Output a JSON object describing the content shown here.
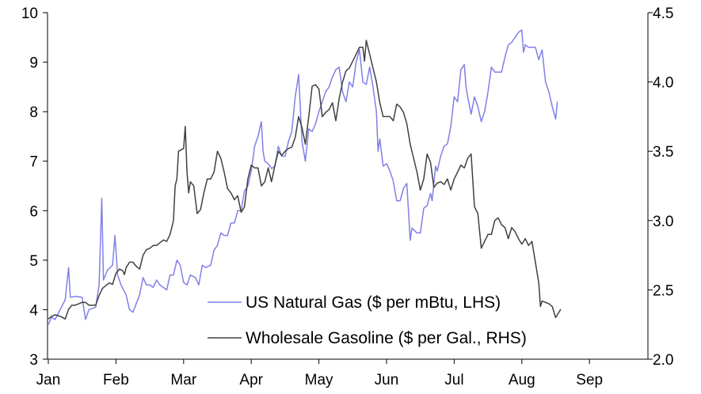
{
  "chart_data": {
    "type": "line",
    "title": "",
    "xlabel": "",
    "ylabel_left": "",
    "ylabel_right": "",
    "x_ticks": [
      "Jan",
      "Feb",
      "Mar",
      "Apr",
      "May",
      "Jun",
      "Jul",
      "Aug",
      "Sep"
    ],
    "left_axis": {
      "range": [
        3,
        10
      ],
      "ticks": [
        "3",
        "4",
        "5",
        "6",
        "7",
        "8",
        "9",
        "10"
      ]
    },
    "right_axis": {
      "range": [
        2.0,
        4.5
      ],
      "ticks": [
        "2.0",
        "2.5",
        "3.0",
        "3.5",
        "4.0",
        "4.5"
      ]
    },
    "legend_position": "bottom-center",
    "grid": false,
    "series": [
      {
        "name": "US Natural Gas ($ per mBtu, LHS)",
        "axis": "left",
        "color": "#8080e8",
        "points": [
          [
            0.0,
            3.7
          ],
          [
            0.1,
            3.85
          ],
          [
            0.2,
            3.8
          ],
          [
            0.35,
            4.0
          ],
          [
            0.5,
            4.2
          ],
          [
            0.6,
            4.85
          ],
          [
            0.65,
            4.25
          ],
          [
            0.8,
            4.27
          ],
          [
            1.0,
            4.25
          ],
          [
            1.1,
            3.8
          ],
          [
            1.2,
            4.0
          ],
          [
            1.4,
            4.05
          ],
          [
            1.5,
            4.5
          ],
          [
            1.58,
            6.25
          ],
          [
            1.63,
            4.6
          ],
          [
            1.75,
            4.8
          ],
          [
            1.9,
            4.9
          ],
          [
            1.97,
            5.5
          ],
          [
            2.05,
            4.7
          ],
          [
            2.15,
            4.5
          ],
          [
            2.3,
            4.3
          ],
          [
            2.4,
            4.0
          ],
          [
            2.5,
            3.95
          ],
          [
            2.7,
            4.3
          ],
          [
            2.8,
            4.65
          ],
          [
            2.9,
            4.5
          ],
          [
            3.0,
            4.5
          ],
          [
            3.1,
            4.45
          ],
          [
            3.2,
            4.6
          ],
          [
            3.3,
            4.5
          ],
          [
            3.5,
            4.4
          ],
          [
            3.6,
            4.7
          ],
          [
            3.7,
            4.7
          ],
          [
            3.8,
            5.0
          ],
          [
            3.9,
            4.9
          ],
          [
            4.0,
            4.55
          ],
          [
            4.1,
            4.5
          ],
          [
            4.2,
            4.7
          ],
          [
            4.35,
            4.65
          ],
          [
            4.45,
            4.5
          ],
          [
            4.55,
            4.9
          ],
          [
            4.65,
            4.85
          ],
          [
            4.8,
            4.9
          ],
          [
            4.9,
            5.2
          ],
          [
            5.0,
            5.3
          ],
          [
            5.1,
            5.55
          ],
          [
            5.2,
            5.5
          ],
          [
            5.3,
            5.5
          ],
          [
            5.4,
            5.75
          ],
          [
            5.5,
            5.75
          ],
          [
            5.6,
            6.0
          ],
          [
            5.7,
            6.0
          ],
          [
            5.8,
            6.4
          ],
          [
            5.9,
            6.5
          ],
          [
            6.0,
            6.8
          ],
          [
            6.1,
            7.3
          ],
          [
            6.2,
            7.5
          ],
          [
            6.3,
            7.8
          ],
          [
            6.35,
            7.2
          ],
          [
            6.4,
            7.0
          ],
          [
            6.5,
            6.95
          ],
          [
            6.6,
            6.85
          ],
          [
            6.7,
            6.9
          ],
          [
            6.8,
            7.3
          ],
          [
            6.9,
            7.1
          ],
          [
            7.0,
            7.1
          ],
          [
            7.1,
            7.4
          ],
          [
            7.2,
            7.6
          ],
          [
            7.3,
            8.3
          ],
          [
            7.4,
            8.75
          ],
          [
            7.5,
            7.4
          ],
          [
            7.6,
            7.0
          ],
          [
            7.7,
            7.65
          ],
          [
            7.8,
            7.6
          ],
          [
            7.9,
            7.75
          ],
          [
            8.0,
            8.0
          ],
          [
            8.1,
            8.2
          ],
          [
            8.2,
            8.4
          ],
          [
            8.3,
            8.5
          ],
          [
            8.4,
            8.7
          ],
          [
            8.5,
            8.85
          ],
          [
            8.6,
            8.9
          ],
          [
            8.7,
            8.4
          ],
          [
            8.8,
            8.2
          ],
          [
            8.9,
            8.6
          ],
          [
            9.0,
            8.5
          ],
          [
            9.1,
            9.0
          ],
          [
            9.2,
            9.25
          ],
          [
            9.3,
            8.6
          ],
          [
            9.4,
            8.55
          ],
          [
            9.5,
            8.9
          ],
          [
            9.6,
            8.5
          ],
          [
            9.7,
            8.0
          ],
          [
            9.75,
            7.2
          ],
          [
            9.8,
            7.45
          ],
          [
            9.9,
            6.9
          ],
          [
            10.0,
            6.95
          ],
          [
            10.1,
            6.8
          ],
          [
            10.2,
            6.6
          ],
          [
            10.3,
            6.2
          ],
          [
            10.4,
            6.2
          ],
          [
            10.5,
            6.45
          ],
          [
            10.6,
            6.55
          ],
          [
            10.7,
            5.4
          ],
          [
            10.75,
            5.65
          ],
          [
            10.9,
            5.55
          ],
          [
            11.0,
            5.55
          ],
          [
            11.1,
            6.05
          ],
          [
            11.2,
            6.1
          ],
          [
            11.3,
            6.35
          ],
          [
            11.35,
            6.2
          ],
          [
            11.45,
            6.9
          ],
          [
            11.5,
            6.8
          ],
          [
            11.6,
            7.1
          ],
          [
            11.7,
            7.3
          ],
          [
            11.8,
            7.35
          ],
          [
            11.9,
            7.7
          ],
          [
            12.0,
            8.3
          ],
          [
            12.1,
            8.2
          ],
          [
            12.2,
            8.85
          ],
          [
            12.3,
            8.95
          ],
          [
            12.35,
            8.5
          ],
          [
            12.4,
            8.3
          ],
          [
            12.5,
            7.95
          ],
          [
            12.6,
            8.3
          ],
          [
            12.7,
            8.1
          ],
          [
            12.8,
            7.8
          ],
          [
            12.9,
            8.0
          ],
          [
            13.0,
            8.4
          ],
          [
            13.1,
            8.9
          ],
          [
            13.2,
            8.8
          ],
          [
            13.3,
            8.8
          ],
          [
            13.4,
            8.8
          ],
          [
            13.5,
            9.1
          ],
          [
            13.6,
            9.35
          ],
          [
            13.7,
            9.4
          ],
          [
            13.8,
            9.5
          ],
          [
            13.9,
            9.6
          ],
          [
            14.0,
            9.65
          ],
          [
            14.05,
            9.2
          ],
          [
            14.1,
            9.35
          ],
          [
            14.2,
            9.3
          ],
          [
            14.3,
            9.3
          ],
          [
            14.4,
            9.3
          ],
          [
            14.5,
            9.05
          ],
          [
            14.6,
            9.25
          ],
          [
            14.7,
            8.6
          ],
          [
            14.8,
            8.4
          ],
          [
            14.9,
            8.1
          ],
          [
            15.0,
            7.85
          ],
          [
            15.05,
            8.2
          ]
        ]
      },
      {
        "name": "Wholesale Gasoline ($ per Gal., RHS)",
        "axis": "right",
        "color": "#404040",
        "points": [
          [
            0.0,
            2.29
          ],
          [
            0.1,
            2.31
          ],
          [
            0.2,
            2.32
          ],
          [
            0.35,
            2.31
          ],
          [
            0.5,
            2.29
          ],
          [
            0.6,
            2.36
          ],
          [
            0.7,
            2.39
          ],
          [
            0.8,
            2.39
          ],
          [
            1.0,
            2.41
          ],
          [
            1.1,
            2.41
          ],
          [
            1.2,
            2.39
          ],
          [
            1.4,
            2.39
          ],
          [
            1.5,
            2.46
          ],
          [
            1.6,
            2.51
          ],
          [
            1.7,
            2.53
          ],
          [
            1.8,
            2.55
          ],
          [
            1.9,
            2.54
          ],
          [
            2.0,
            2.62
          ],
          [
            2.1,
            2.65
          ],
          [
            2.2,
            2.64
          ],
          [
            2.25,
            2.61
          ],
          [
            2.3,
            2.66
          ],
          [
            2.4,
            2.7
          ],
          [
            2.5,
            2.7
          ],
          [
            2.6,
            2.67
          ],
          [
            2.7,
            2.65
          ],
          [
            2.8,
            2.75
          ],
          [
            2.9,
            2.79
          ],
          [
            3.0,
            2.8
          ],
          [
            3.1,
            2.82
          ],
          [
            3.2,
            2.82
          ],
          [
            3.3,
            2.84
          ],
          [
            3.4,
            2.86
          ],
          [
            3.5,
            2.85
          ],
          [
            3.6,
            2.9
          ],
          [
            3.7,
            3.0
          ],
          [
            3.75,
            3.25
          ],
          [
            3.8,
            3.3
          ],
          [
            3.85,
            3.5
          ],
          [
            4.0,
            3.52
          ],
          [
            4.05,
            3.68
          ],
          [
            4.1,
            3.35
          ],
          [
            4.15,
            3.2
          ],
          [
            4.2,
            3.28
          ],
          [
            4.3,
            3.25
          ],
          [
            4.4,
            3.05
          ],
          [
            4.5,
            3.08
          ],
          [
            4.6,
            3.2
          ],
          [
            4.7,
            3.3
          ],
          [
            4.8,
            3.3
          ],
          [
            4.9,
            3.35
          ],
          [
            5.0,
            3.5
          ],
          [
            5.1,
            3.45
          ],
          [
            5.2,
            3.35
          ],
          [
            5.3,
            3.23
          ],
          [
            5.4,
            3.2
          ],
          [
            5.5,
            3.15
          ],
          [
            5.6,
            3.18
          ],
          [
            5.7,
            3.06
          ],
          [
            5.8,
            3.1
          ],
          [
            5.9,
            3.3
          ],
          [
            6.0,
            3.4
          ],
          [
            6.1,
            3.38
          ],
          [
            6.2,
            3.38
          ],
          [
            6.3,
            3.25
          ],
          [
            6.4,
            3.28
          ],
          [
            6.5,
            3.38
          ],
          [
            6.6,
            3.28
          ],
          [
            6.7,
            3.4
          ],
          [
            6.8,
            3.5
          ],
          [
            6.9,
            3.47
          ],
          [
            7.0,
            3.5
          ],
          [
            7.1,
            3.52
          ],
          [
            7.2,
            3.53
          ],
          [
            7.3,
            3.6
          ],
          [
            7.4,
            3.75
          ],
          [
            7.5,
            3.67
          ],
          [
            7.6,
            3.55
          ],
          [
            7.7,
            3.75
          ],
          [
            7.8,
            3.97
          ],
          [
            7.9,
            3.98
          ],
          [
            8.0,
            3.95
          ],
          [
            8.1,
            3.75
          ],
          [
            8.2,
            3.78
          ],
          [
            8.3,
            3.8
          ],
          [
            8.4,
            3.85
          ],
          [
            8.5,
            3.72
          ],
          [
            8.6,
            3.88
          ],
          [
            8.7,
            4.0
          ],
          [
            8.8,
            4.08
          ],
          [
            8.9,
            4.1
          ],
          [
            9.0,
            4.15
          ],
          [
            9.1,
            4.2
          ],
          [
            9.2,
            4.25
          ],
          [
            9.3,
            4.25
          ],
          [
            9.35,
            4.15
          ],
          [
            9.4,
            4.3
          ],
          [
            9.5,
            4.2
          ],
          [
            9.6,
            4.1
          ],
          [
            9.7,
            4.0
          ],
          [
            9.8,
            3.85
          ],
          [
            9.9,
            3.75
          ],
          [
            10.0,
            3.75
          ],
          [
            10.1,
            3.75
          ],
          [
            10.2,
            3.72
          ],
          [
            10.3,
            3.84
          ],
          [
            10.4,
            3.82
          ],
          [
            10.5,
            3.78
          ],
          [
            10.6,
            3.7
          ],
          [
            10.7,
            3.55
          ],
          [
            10.8,
            3.45
          ],
          [
            10.9,
            3.35
          ],
          [
            11.0,
            3.22
          ],
          [
            11.1,
            3.3
          ],
          [
            11.2,
            3.48
          ],
          [
            11.3,
            3.42
          ],
          [
            11.4,
            3.24
          ],
          [
            11.5,
            3.27
          ],
          [
            11.6,
            3.28
          ],
          [
            11.7,
            3.26
          ],
          [
            11.8,
            3.3
          ],
          [
            11.9,
            3.22
          ],
          [
            12.0,
            3.3
          ],
          [
            12.1,
            3.35
          ],
          [
            12.2,
            3.4
          ],
          [
            12.3,
            3.38
          ],
          [
            12.4,
            3.45
          ],
          [
            12.5,
            3.48
          ],
          [
            12.6,
            3.1
          ],
          [
            12.7,
            3.05
          ],
          [
            12.8,
            2.8
          ],
          [
            12.9,
            2.85
          ],
          [
            13.0,
            2.9
          ],
          [
            13.1,
            2.9
          ],
          [
            13.2,
            3.0
          ],
          [
            13.3,
            3.02
          ],
          [
            13.4,
            2.97
          ],
          [
            13.5,
            2.95
          ],
          [
            13.6,
            2.87
          ],
          [
            13.7,
            2.95
          ],
          [
            13.8,
            2.92
          ],
          [
            13.9,
            2.87
          ],
          [
            14.0,
            2.83
          ],
          [
            14.1,
            2.87
          ],
          [
            14.2,
            2.82
          ],
          [
            14.3,
            2.85
          ],
          [
            14.4,
            2.7
          ],
          [
            14.5,
            2.55
          ],
          [
            14.55,
            2.38
          ],
          [
            14.6,
            2.42
          ],
          [
            14.7,
            2.41
          ],
          [
            14.8,
            2.4
          ],
          [
            14.9,
            2.38
          ],
          [
            15.0,
            2.3
          ],
          [
            15.1,
            2.34
          ],
          [
            15.15,
            2.36
          ]
        ]
      }
    ]
  }
}
